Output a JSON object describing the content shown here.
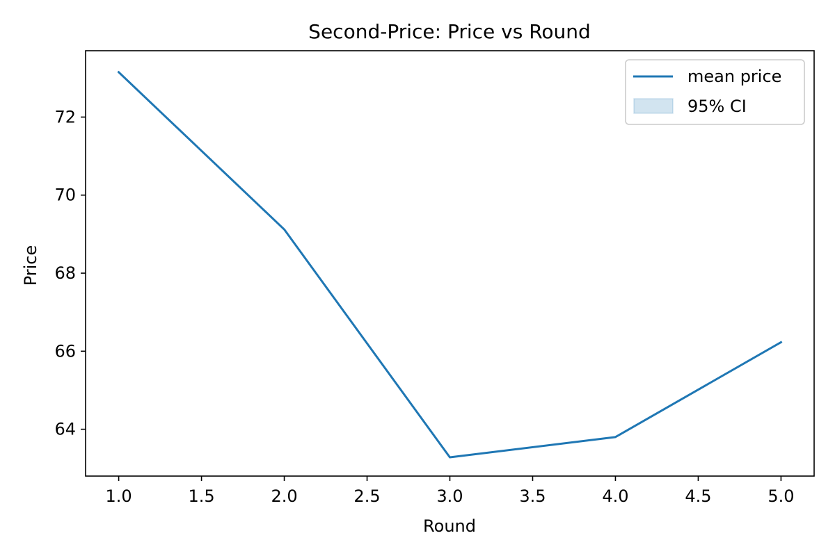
{
  "chart_data": {
    "type": "line",
    "title": "Second-Price: Price vs Round",
    "xlabel": "Round",
    "ylabel": "Price",
    "xlim": [
      0.8,
      5.2
    ],
    "ylim": [
      62.8,
      73.7
    ],
    "x_ticks": [
      1.0,
      1.5,
      2.0,
      2.5,
      3.0,
      3.5,
      4.0,
      4.5,
      5.0
    ],
    "x_tick_labels": [
      "1.0",
      "1.5",
      "2.0",
      "2.5",
      "3.0",
      "3.5",
      "4.0",
      "4.5",
      "5.0"
    ],
    "y_ticks": [
      64,
      66,
      68,
      70,
      72
    ],
    "y_tick_labels": [
      "64",
      "66",
      "68",
      "70",
      "72"
    ],
    "grid": false,
    "legend_position": "top-right",
    "legend": [
      {
        "label": "mean price",
        "kind": "line",
        "color": "#1f77b4"
      },
      {
        "label": "95% CI",
        "kind": "area",
        "color": "#1f77b4"
      }
    ],
    "series": [
      {
        "name": "mean price",
        "color": "#1f77b4",
        "x": [
          1,
          2,
          3,
          4,
          5
        ],
        "values": [
          73.15,
          69.12,
          63.28,
          63.8,
          66.23
        ]
      }
    ],
    "ci_band": {
      "name": "95% CI",
      "color": "#1f77b4",
      "lower": [
        73.15,
        69.12,
        63.28,
        63.8,
        66.23
      ],
      "upper": [
        73.15,
        69.12,
        63.28,
        63.8,
        66.23
      ]
    }
  }
}
